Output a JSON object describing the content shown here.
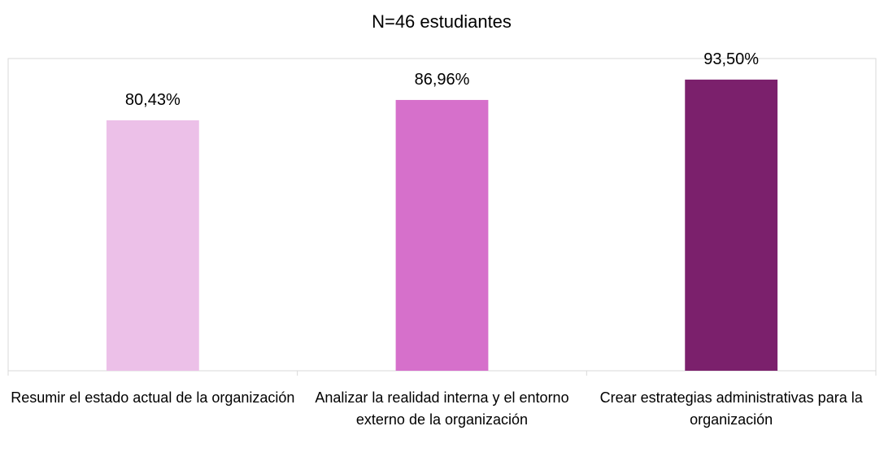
{
  "chart_data": {
    "type": "bar",
    "title": "N=46 estudiantes",
    "categories": [
      "Resumir el estado actual de la organización",
      "Analizar la realidad interna y el entorno externo de la organización",
      "Crear estrategias administrativas para la organización"
    ],
    "values": [
      80.43,
      86.96,
      93.5
    ],
    "value_labels": [
      "80,43%",
      "86,96%",
      "93,50%"
    ],
    "colors": [
      "#ecc0e8",
      "#d670cb",
      "#7b206c"
    ],
    "ylim": [
      0,
      100
    ]
  }
}
